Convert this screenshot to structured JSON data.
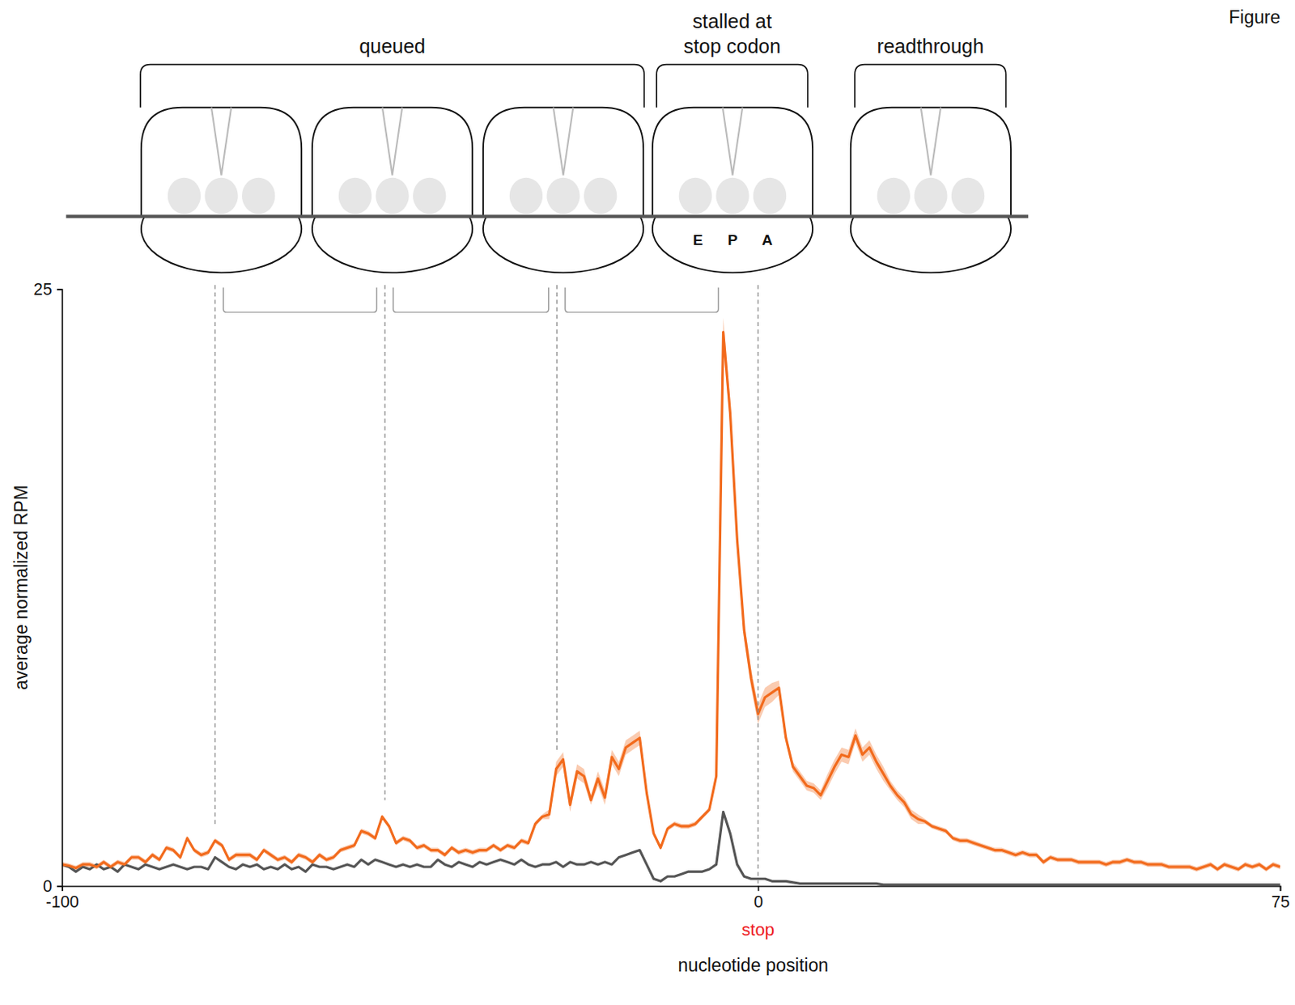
{
  "chart_data": {
    "type": "line",
    "x_label": "nucleotide position",
    "y_label": "average normalized RPM",
    "xlim": [
      -100,
      75
    ],
    "xticks": [
      -100,
      0,
      75
    ],
    "ylim": [
      0,
      25
    ],
    "yticks": [
      0,
      25
    ],
    "x": [
      -100,
      -99,
      -98,
      -97,
      -96,
      -95,
      -94,
      -93,
      -92,
      -91,
      -90,
      -89,
      -88,
      -87,
      -86,
      -85,
      -84,
      -83,
      -82,
      -81,
      -80,
      -79,
      -78,
      -77,
      -76,
      -75,
      -74,
      -73,
      -72,
      -71,
      -70,
      -69,
      -68,
      -67,
      -66,
      -65,
      -64,
      -63,
      -62,
      -61,
      -60,
      -59,
      -58,
      -57,
      -56,
      -55,
      -54,
      -53,
      -52,
      -51,
      -50,
      -49,
      -48,
      -47,
      -46,
      -45,
      -44,
      -43,
      -42,
      -41,
      -40,
      -39,
      -38,
      -37,
      -36,
      -35,
      -34,
      -33,
      -32,
      -31,
      -30,
      -29,
      -28,
      -27,
      -26,
      -25,
      -24,
      -23,
      -22,
      -21,
      -20,
      -19,
      -18,
      -17,
      -16,
      -15,
      -14,
      -13,
      -12,
      -11,
      -10,
      -9,
      -8,
      -7,
      -6,
      -5,
      -4,
      -3,
      -2,
      -1,
      0,
      1,
      2,
      3,
      4,
      5,
      6,
      7,
      8,
      9,
      10,
      11,
      12,
      13,
      14,
      15,
      16,
      17,
      18,
      19,
      20,
      21,
      22,
      23,
      24,
      25,
      26,
      27,
      28,
      29,
      30,
      31,
      32,
      33,
      34,
      35,
      36,
      37,
      38,
      39,
      40,
      41,
      42,
      43,
      44,
      45,
      46,
      47,
      48,
      49,
      50,
      51,
      52,
      53,
      54,
      55,
      56,
      57,
      58,
      59,
      60,
      61,
      62,
      63,
      64,
      65,
      66,
      67,
      68,
      69,
      70,
      71,
      72,
      73,
      74,
      75
    ],
    "series": [
      {
        "color": "#f26b1d",
        "values": [
          0.9,
          0.85,
          0.75,
          0.9,
          0.9,
          0.8,
          1.0,
          0.8,
          1.0,
          0.9,
          1.2,
          1.2,
          1.0,
          1.3,
          1.1,
          1.6,
          1.5,
          1.2,
          2.0,
          1.5,
          1.3,
          1.4,
          1.9,
          1.7,
          1.1,
          1.3,
          1.3,
          1.3,
          1.1,
          1.5,
          1.3,
          1.1,
          1.2,
          1.0,
          1.3,
          1.2,
          1.0,
          1.3,
          1.1,
          1.2,
          1.5,
          1.6,
          1.7,
          2.3,
          2.2,
          2.0,
          2.9,
          2.5,
          1.8,
          2.0,
          1.9,
          1.6,
          1.7,
          1.5,
          1.5,
          1.3,
          1.6,
          1.4,
          1.5,
          1.4,
          1.5,
          1.5,
          1.7,
          1.5,
          1.7,
          1.6,
          1.9,
          1.8,
          2.6,
          2.9,
          3.0,
          4.9,
          5.3,
          3.4,
          4.8,
          4.6,
          3.6,
          4.5,
          3.7,
          5.4,
          4.9,
          5.8,
          6.0,
          6.2,
          3.9,
          2.2,
          1.6,
          2.4,
          2.6,
          2.5,
          2.5,
          2.6,
          2.9,
          3.2,
          4.6,
          23.2,
          19.8,
          14.5,
          10.7,
          8.7,
          7.2,
          7.9,
          8.1,
          8.3,
          6.2,
          5.0,
          4.6,
          4.2,
          4.1,
          3.8,
          4.4,
          5.0,
          5.5,
          5.4,
          6.3,
          5.5,
          5.8,
          5.2,
          4.7,
          4.2,
          3.8,
          3.5,
          3.0,
          2.8,
          2.7,
          2.5,
          2.4,
          2.3,
          2.0,
          1.9,
          1.9,
          1.8,
          1.7,
          1.6,
          1.5,
          1.5,
          1.4,
          1.3,
          1.4,
          1.3,
          1.3,
          1.0,
          1.2,
          1.1,
          1.1,
          1.1,
          1.0,
          1.0,
          1.0,
          1.0,
          0.9,
          1.0,
          1.0,
          1.1,
          1.0,
          1.0,
          0.9,
          0.9,
          0.9,
          0.8,
          0.8,
          0.8,
          0.8,
          0.7,
          0.8,
          0.9,
          0.7,
          0.9,
          0.8,
          0.7,
          0.9,
          0.8,
          0.9,
          0.7,
          0.9,
          0.8
        ],
        "error": [
          0.1,
          0.1,
          0.1,
          0.1,
          0.1,
          0.1,
          0.1,
          0.1,
          0.1,
          0.1,
          0.1,
          0.1,
          0.1,
          0.1,
          0.1,
          0.1,
          0.1,
          0.1,
          0.1,
          0.1,
          0.1,
          0.1,
          0.1,
          0.1,
          0.1,
          0.1,
          0.1,
          0.1,
          0.1,
          0.1,
          0.1,
          0.1,
          0.1,
          0.1,
          0.1,
          0.1,
          0.1,
          0.1,
          0.1,
          0.1,
          0.1,
          0.1,
          0.1,
          0.1,
          0.1,
          0.1,
          0.1,
          0.1,
          0.1,
          0.1,
          0.1,
          0.1,
          0.1,
          0.1,
          0.1,
          0.1,
          0.1,
          0.1,
          0.1,
          0.1,
          0.1,
          0.1,
          0.1,
          0.1,
          0.1,
          0.1,
          0.1,
          0.1,
          0.1,
          0.1,
          0.2,
          0.3,
          0.3,
          0.3,
          0.3,
          0.3,
          0.2,
          0.3,
          0.3,
          0.3,
          0.3,
          0.3,
          0.3,
          0.3,
          0.2,
          0.1,
          0.1,
          0.1,
          0.1,
          0.1,
          0.1,
          0.1,
          0.1,
          0.1,
          0.2,
          0.6,
          0.5,
          0.4,
          0.4,
          0.4,
          0.4,
          0.4,
          0.4,
          0.3,
          0.2,
          0.2,
          0.2,
          0.2,
          0.2,
          0.2,
          0.3,
          0.3,
          0.3,
          0.3,
          0.3,
          0.3,
          0.3,
          0.3,
          0.3,
          0.2,
          0.2,
          0.2,
          0.2,
          0.2,
          0.1,
          0.1,
          0.1,
          0.1,
          0.1,
          0.1,
          0.1,
          0.1,
          0.1,
          0.1,
          0.1,
          0.1,
          0.1,
          0.1,
          0.1,
          0.1,
          0.1,
          0.1,
          0.1,
          0.1,
          0.1,
          0.1,
          0.1,
          0.1,
          0.1,
          0.1,
          0.1,
          0.1,
          0.1,
          0.1,
          0.1,
          0.1,
          0.1,
          0.1,
          0.1,
          0.1,
          0.1,
          0.1,
          0.1,
          0.1,
          0.1,
          0.1,
          0.1,
          0.1,
          0.1,
          0.1,
          0.1,
          0.1,
          0.1,
          0.1,
          0.1,
          0.1
        ]
      },
      {
        "color": "#555555",
        "values": [
          0.9,
          0.8,
          0.6,
          0.8,
          0.7,
          0.9,
          0.7,
          0.8,
          0.6,
          0.9,
          0.8,
          0.7,
          0.9,
          0.8,
          0.7,
          0.8,
          0.9,
          0.8,
          0.7,
          0.8,
          0.8,
          0.7,
          1.2,
          1.0,
          0.8,
          0.7,
          0.9,
          0.8,
          0.9,
          0.7,
          0.8,
          0.7,
          0.9,
          0.7,
          0.8,
          0.6,
          0.9,
          0.8,
          0.8,
          0.7,
          0.8,
          0.9,
          0.8,
          1.1,
          0.9,
          1.1,
          1.0,
          0.9,
          0.8,
          0.9,
          0.8,
          0.9,
          0.8,
          0.8,
          1.1,
          0.9,
          0.8,
          1.0,
          0.9,
          0.8,
          1.0,
          0.9,
          1.0,
          1.1,
          1.0,
          0.9,
          1.1,
          0.9,
          0.8,
          0.9,
          0.9,
          1.0,
          0.8,
          1.0,
          0.9,
          0.9,
          1.0,
          0.9,
          1.0,
          0.9,
          1.2,
          1.3,
          1.4,
          1.5,
          0.9,
          0.3,
          0.2,
          0.4,
          0.4,
          0.5,
          0.6,
          0.6,
          0.6,
          0.7,
          0.9,
          3.1,
          2.2,
          0.9,
          0.4,
          0.3,
          0.3,
          0.3,
          0.2,
          0.2,
          0.2,
          0.15,
          0.1,
          0.1,
          0.1,
          0.1,
          0.1,
          0.1,
          0.1,
          0.1,
          0.1,
          0.1,
          0.1,
          0.1,
          0.05,
          0.05,
          0.05,
          0.05,
          0.05,
          0.05,
          0.05,
          0.05,
          0.05,
          0.05,
          0.05,
          0.05,
          0.05,
          0.05,
          0.05,
          0.05,
          0.05,
          0.05,
          0.05,
          0.05,
          0.05,
          0.05,
          0.05,
          0.05,
          0.05,
          0.05,
          0.05,
          0.05,
          0.05,
          0.05,
          0.05,
          0.05,
          0.05,
          0.05,
          0.05,
          0.05,
          0.05,
          0.05,
          0.05,
          0.05,
          0.05,
          0.05,
          0.05,
          0.05,
          0.05,
          0.05,
          0.05,
          0.05,
          0.05,
          0.05,
          0.05,
          0.05,
          0.05,
          0.05,
          0.05,
          0.05,
          0.05,
          0.05
        ]
      }
    ],
    "annotations": [
      {
        "text": "stop",
        "x": 0,
        "color": "#ee1c25"
      }
    ],
    "diagram": {
      "groups": [
        "queued",
        "stalled at stop codon",
        "readthrough"
      ],
      "sites": [
        "E",
        "P",
        "A"
      ],
      "dashed_lines": [
        -78,
        -53.6,
        -28.9,
        0
      ]
    },
    "figure_label": "Figure"
  }
}
